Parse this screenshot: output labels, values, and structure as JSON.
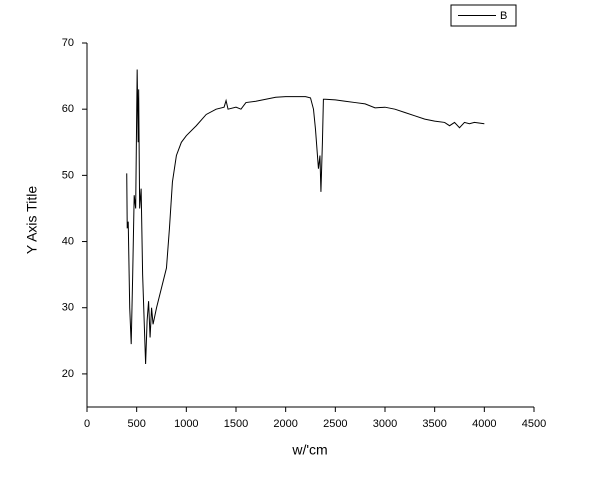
{
  "chart_data": {
    "type": "line",
    "xlabel": "w/'cm",
    "ylabel": "Y Axis Title",
    "xlim": [
      0,
      4500
    ],
    "ylim": [
      15,
      70
    ],
    "xticks": [
      0,
      500,
      1000,
      1500,
      2000,
      2500,
      3000,
      3500,
      4000,
      4500
    ],
    "yticks": [
      20,
      30,
      40,
      50,
      60,
      70
    ],
    "legend": "top-right",
    "series": [
      {
        "name": "B",
        "color": "#000000",
        "x": [
          400,
          405,
          415,
          430,
          445,
          460,
          475,
          490,
          505,
          515,
          520,
          530,
          545,
          560,
          590,
          605,
          620,
          635,
          650,
          665,
          700,
          750,
          800,
          830,
          860,
          900,
          950,
          1000,
          1100,
          1200,
          1300,
          1380,
          1400,
          1420,
          1500,
          1550,
          1600,
          1700,
          1800,
          1900,
          2000,
          2100,
          2200,
          2250,
          2280,
          2300,
          2330,
          2345,
          2355,
          2370,
          2380,
          2400,
          2500,
          2600,
          2700,
          2800,
          2900,
          3000,
          3100,
          3200,
          3300,
          3400,
          3500,
          3600,
          3650,
          3700,
          3750,
          3800,
          3850,
          3900,
          4000
        ],
        "values": [
          50.3,
          42,
          43,
          30,
          24.5,
          35,
          47,
          45,
          66,
          55,
          63,
          45,
          48,
          35,
          21.5,
          28,
          31,
          25.5,
          30,
          27.5,
          30,
          33,
          36,
          42,
          49,
          53,
          55,
          56,
          57.5,
          59.2,
          60,
          60.3,
          61.3,
          60,
          60.3,
          60,
          61,
          61.2,
          61.5,
          61.8,
          61.9,
          61.9,
          61.9,
          61.7,
          60,
          57,
          51,
          53,
          47.5,
          55,
          61.5,
          61.5,
          61.4,
          61.2,
          61,
          60.8,
          60.2,
          60.3,
          60,
          59.5,
          59,
          58.5,
          58.2,
          58,
          57.5,
          58,
          57.2,
          58,
          57.8,
          58,
          57.8
        ]
      }
    ]
  }
}
